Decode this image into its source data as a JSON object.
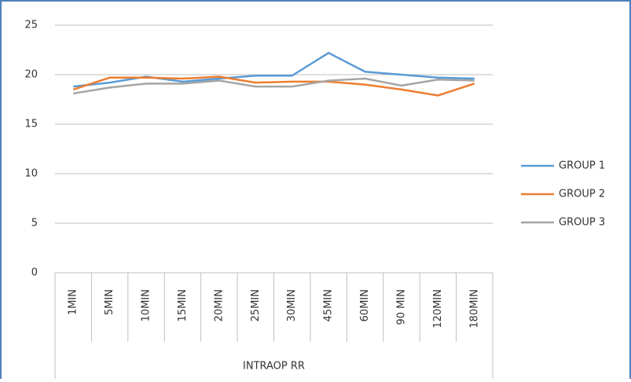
{
  "chart_data": {
    "type": "line",
    "x_label": "INTRAOP RR",
    "categories": [
      "1MIN",
      "5MIN",
      "10MIN",
      "15MIN",
      "20MIN",
      "25MIN",
      "30MIN",
      "45MIN",
      "60MIN",
      "90 MIN",
      "120MIN",
      "180MIN"
    ],
    "series": [
      {
        "name": "GROUP 1",
        "color": "#5b9bd5",
        "values": [
          18.8,
          19.2,
          19.8,
          19.3,
          19.6,
          19.9,
          19.9,
          22.2,
          20.3,
          20.0,
          19.7,
          19.6
        ]
      },
      {
        "name": "GROUP 2",
        "color": "#ed7d31",
        "values": [
          18.5,
          19.7,
          19.7,
          19.6,
          19.8,
          19.2,
          19.3,
          19.3,
          19.0,
          18.5,
          17.9,
          19.1
        ]
      },
      {
        "name": "GROUP 3",
        "color": "#a5a5a5",
        "values": [
          18.1,
          18.7,
          19.1,
          19.1,
          19.4,
          18.8,
          18.8,
          19.4,
          19.6,
          18.9,
          19.5,
          19.4
        ]
      }
    ],
    "ylim": [
      0,
      25
    ],
    "yticks": [
      0,
      5,
      10,
      15,
      20,
      25
    ],
    "grid": true,
    "legend": "right"
  }
}
